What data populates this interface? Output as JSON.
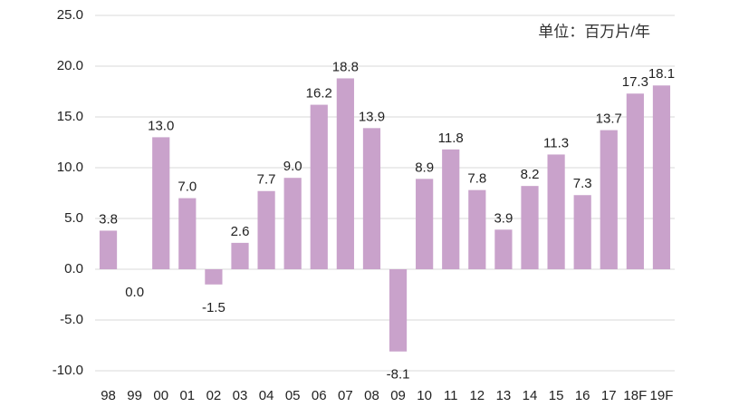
{
  "chart_data": {
    "type": "bar",
    "annotation": "单位：百万片/年",
    "categories": [
      "98",
      "99",
      "00",
      "01",
      "02",
      "03",
      "04",
      "05",
      "06",
      "07",
      "08",
      "09",
      "10",
      "11",
      "12",
      "13",
      "14",
      "15",
      "16",
      "17",
      "18F",
      "19F"
    ],
    "values": [
      3.8,
      0.0,
      13.0,
      7.0,
      -1.5,
      2.6,
      7.7,
      9.0,
      16.2,
      18.8,
      13.9,
      -8.1,
      8.9,
      11.8,
      7.8,
      3.9,
      8.2,
      11.3,
      7.3,
      13.7,
      17.3,
      18.1
    ],
    "value_labels": [
      "3.8",
      "0.0",
      "13.0",
      "7.0",
      "-1.5",
      "2.6",
      "7.7",
      "9.0",
      "16.2",
      "18.8",
      "13.9",
      "-8.1",
      "8.9",
      "11.8",
      "7.8",
      "3.9",
      "8.2",
      "11.3",
      "7.3",
      "13.7",
      "17.3",
      "18.1"
    ],
    "color": "#c9a2cb",
    "ylim": [
      -10,
      25
    ],
    "yticks": [
      {
        "value": -10,
        "label": "-10.0"
      },
      {
        "value": -5,
        "label": "-5.0"
      },
      {
        "value": 0,
        "label": "0.0"
      },
      {
        "value": 5,
        "label": "5.0"
      },
      {
        "value": 10,
        "label": "10.0"
      },
      {
        "value": 15,
        "label": "15.0"
      },
      {
        "value": 20,
        "label": "20.0"
      },
      {
        "value": 25,
        "label": "25.0"
      }
    ],
    "grid": true
  }
}
